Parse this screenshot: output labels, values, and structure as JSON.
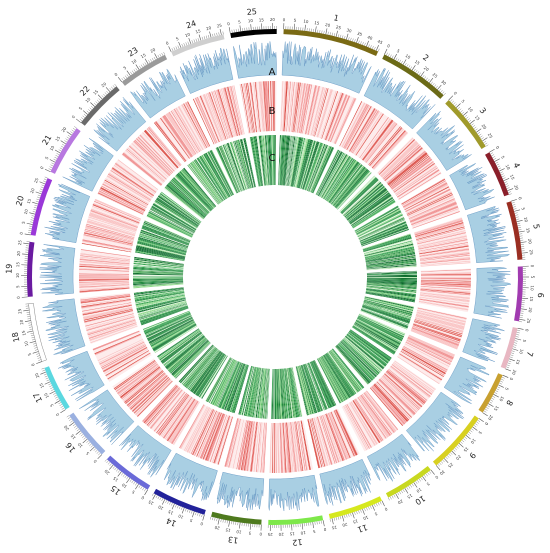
{
  "chromosomes": [
    {
      "name": "1",
      "length": 46,
      "color": "#7a6a14"
    },
    {
      "name": "2",
      "length": 34,
      "color": "#6b6a16"
    },
    {
      "name": "3",
      "length": 28,
      "color": "#a09a2a"
    },
    {
      "name": "4",
      "length": 22,
      "color": "#8a1f2a"
    },
    {
      "name": "5",
      "length": 28,
      "color": "#9a2e22"
    },
    {
      "name": "6",
      "length": 26,
      "color": "#a13bb0"
    },
    {
      "name": "7",
      "length": 20,
      "color": "#e8b7c2"
    },
    {
      "name": "8",
      "length": 20,
      "color": "#c8a030"
    },
    {
      "name": "9",
      "length": 30,
      "color": "#d8d020"
    },
    {
      "name": "10",
      "length": 24,
      "color": "#c8d820"
    },
    {
      "name": "11",
      "length": 26,
      "color": "#d6e81e"
    },
    {
      "name": "12",
      "length": 26,
      "color": "#7ee84a"
    },
    {
      "name": "13",
      "length": 24,
      "color": "#4e7a1e"
    },
    {
      "name": "14",
      "length": 26,
      "color": "#22229a"
    },
    {
      "name": "15",
      "length": 24,
      "color": "#6a6ad8"
    },
    {
      "name": "16",
      "length": 24,
      "color": "#9ab0e0"
    },
    {
      "name": "17",
      "length": 22,
      "color": "#5bd8e0"
    },
    {
      "name": "18",
      "length": 28,
      "color": "#ffffff"
    },
    {
      "name": "19",
      "length": 26,
      "color": "#6a1aa0"
    },
    {
      "name": "20",
      "length": 28,
      "color": "#9a38d8"
    },
    {
      "name": "21",
      "length": 24,
      "color": "#b878e0"
    },
    {
      "name": "22",
      "length": 24,
      "color": "#6a6a6a"
    },
    {
      "name": "23",
      "length": 24,
      "color": "#9a9a9a"
    },
    {
      "name": "24",
      "length": 26,
      "color": "#cfcfcf"
    },
    {
      "name": "25",
      "length": 22,
      "color": "#000000"
    }
  ],
  "track_labels": {
    "a": "A",
    "b": "B",
    "c": "C"
  },
  "tracks": {
    "A": {
      "type": "histogram",
      "color": "#a9cfe3",
      "edge": "#5a8fbf"
    },
    "B": {
      "type": "heatmap",
      "palette": [
        "#fdeaea",
        "#f9c2c2",
        "#ef8c8c",
        "#d9483f"
      ]
    },
    "C": {
      "type": "heatmap",
      "palette": [
        "#e6f7e0",
        "#8fd88a",
        "#2e9e4a",
        "#0a6a2a"
      ]
    }
  },
  "tick_step": 5
}
